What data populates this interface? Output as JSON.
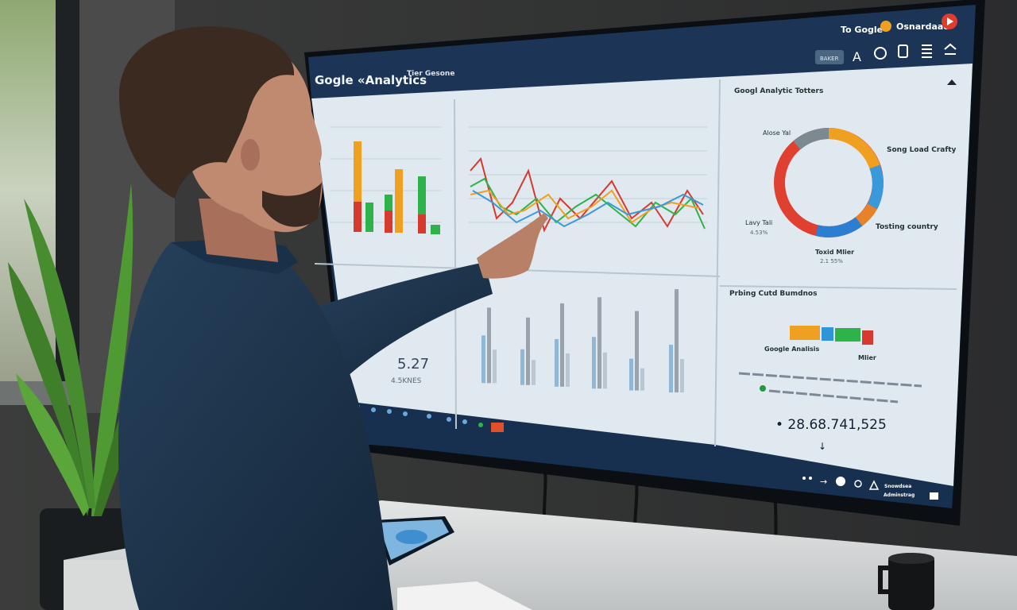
{
  "screen": {
    "header": {
      "app_title": "Gogle «Analytics",
      "app_subtitle": "Tier Gesone",
      "account_label": "To Gogle",
      "account_secondary": "Osnardaac",
      "toolbar_button": "BAKER"
    },
    "panel_donut": {
      "title": "Googl Analytic Totters",
      "labels": [
        "Alose Yal",
        "Song Load Crafty",
        "Lavy Tali",
        "4.53%",
        "Tosting country",
        "Toxid Mlier",
        "2.1 55%"
      ],
      "colors": [
        "#f0a020",
        "#3a9ad9",
        "#e6832a",
        "#2c7fd0",
        "#e04030",
        "#7a8a90"
      ]
    },
    "panel_small": {
      "value": "5.27",
      "caption": "4.5KNES"
    },
    "panel_stats": {
      "title": "Prbing Cutd Bumdnos",
      "bar_label_left": "Google Analisis",
      "bar_label_right": "Mlier",
      "big_number": "• 28.68.741,525",
      "bar_colors": [
        "#f0a020",
        "#2f95d8",
        "#2db34a",
        "#d63a2f"
      ]
    },
    "taskbar": {
      "status_line1": "Snowdsea",
      "status_line2": "Adminstrag"
    }
  }
}
